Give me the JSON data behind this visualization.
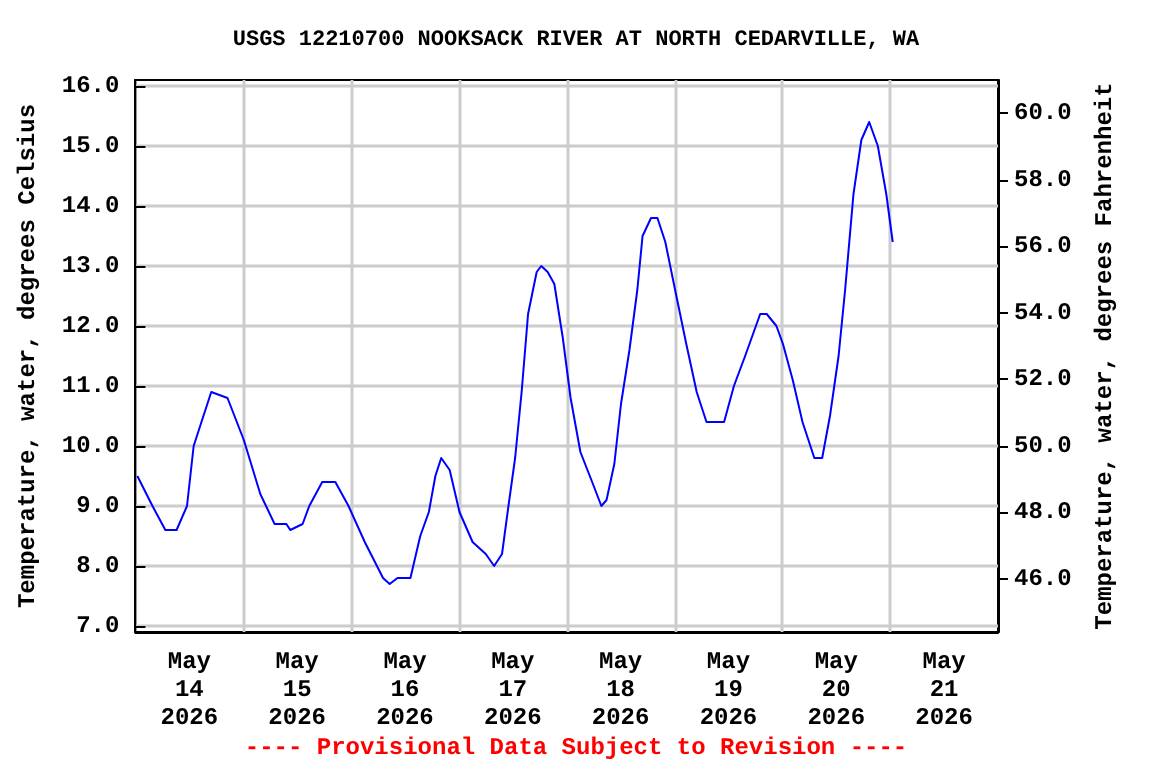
{
  "chart_data": {
    "type": "line",
    "title": "USGS 12210700 NOOKSACK RIVER AT NORTH CEDARVILLE, WA",
    "ylabel": "Temperature, water, degrees Celsius",
    "y2label": "Temperature, water, degrees Fahrenheit",
    "annotations": [
      "---- Provisional Data Subject to Revision ----"
    ],
    "x": [
      "2026-05-14T00:26",
      "2026-05-14T03:48",
      "2026-05-14T06:40",
      "2026-05-14T09:10",
      "2026-05-14T11:29",
      "2026-05-14T12:58",
      "2026-05-14T14:42",
      "2026-05-14T16:53",
      "2026-05-14T20:30",
      "2026-05-15T00:08",
      "2026-05-15T03:48",
      "2026-05-15T06:59",
      "2026-05-15T09:36",
      "2026-05-15T10:28",
      "2026-05-15T13:13",
      "2026-05-15T14:42",
      "2026-05-15T17:35",
      "2026-05-15T20:30",
      "2026-05-15T23:26",
      "2026-05-16T03:03",
      "2026-05-16T07:07",
      "2026-05-16T08:36",
      "2026-05-16T10:20",
      "2026-05-16T13:13",
      "2026-05-16T15:24",
      "2026-05-16T17:19",
      "2026-05-16T18:46",
      "2026-05-16T20:04",
      "2026-05-16T21:57",
      "2026-05-17T00:08",
      "2026-05-17T03:03",
      "2026-05-17T05:59",
      "2026-05-17T07:51",
      "2026-05-17T09:36",
      "2026-05-17T11:02",
      "2026-05-17T12:31",
      "2026-05-17T13:58",
      "2026-05-17T15:24",
      "2026-05-17T17:19",
      "2026-05-17T18:20",
      "2026-05-17T19:46",
      "2026-05-17T21:15",
      "2026-05-17T23:08",
      "2026-05-18T00:52",
      "2026-05-18T03:03",
      "2026-05-18T05:40",
      "2026-05-18T07:43",
      "2026-05-18T08:52",
      "2026-05-18T10:36",
      "2026-05-18T12:05",
      "2026-05-18T13:58",
      "2026-05-18T15:43",
      "2026-05-18T16:53",
      "2026-05-18T18:46",
      "2026-05-18T20:12",
      "2026-05-18T21:57",
      "2026-05-19T00:08",
      "2026-05-19T02:37",
      "2026-05-19T04:56",
      "2026-05-19T07:07",
      "2026-05-19T11:02",
      "2026-05-19T13:13",
      "2026-05-19T15:43",
      "2026-05-19T19:04",
      "2026-05-19T20:31",
      "2026-05-19T22:41",
      "2026-05-20T00:08",
      "2026-05-20T02:19",
      "2026-05-20T04:29",
      "2026-05-20T07:07",
      "2026-05-20T08:52",
      "2026-05-20T10:36",
      "2026-05-20T12:31",
      "2026-05-20T13:58",
      "2026-05-20T15:50",
      "2026-05-20T17:35",
      "2026-05-20T19:20",
      "2026-05-20T21:15",
      "2026-05-20T23:08",
      "2026-05-21T00:34"
    ],
    "series": [
      {
        "color": "#0000ff",
        "values": [
          9.5,
          9.0,
          8.6,
          8.6,
          9.0,
          10.0,
          10.4,
          10.9,
          10.8,
          10.1,
          9.2,
          8.7,
          8.7,
          8.6,
          8.7,
          9.0,
          9.4,
          9.4,
          9.0,
          8.4,
          7.8,
          7.7,
          7.8,
          7.8,
          8.5,
          8.9,
          9.5,
          9.8,
          9.6,
          8.9,
          8.4,
          8.2,
          8.0,
          8.2,
          9.0,
          9.8,
          10.9,
          12.2,
          12.9,
          13.0,
          12.9,
          12.7,
          11.8,
          10.8,
          9.9,
          9.4,
          9.0,
          9.1,
          9.7,
          10.7,
          11.6,
          12.6,
          13.5,
          13.8,
          13.8,
          13.4,
          12.6,
          11.7,
          10.9,
          10.4,
          10.4,
          11.0,
          11.5,
          12.2,
          12.2,
          12.0,
          11.7,
          11.1,
          10.4,
          9.8,
          9.8,
          10.5,
          11.5,
          12.6,
          14.2,
          15.1,
          15.4,
          15.0,
          14.2,
          13.4
        ]
      }
    ],
    "xlim": [
      "2026-05-14",
      "2026-05-22"
    ],
    "xticks": [
      {
        "value": "2026-05-15",
        "label": null
      },
      {
        "value": "2026-05-16",
        "label": null
      },
      {
        "value": "2026-05-17",
        "label": null
      },
      {
        "value": "2026-05-18",
        "label": null
      },
      {
        "value": "2026-05-19",
        "label": null
      },
      {
        "value": "2026-05-20",
        "label": null
      },
      {
        "value": "2026-05-21",
        "label": null
      },
      {
        "value": "2026-05-14T12:00",
        "label": "May\n14\n2026"
      },
      {
        "value": "2026-05-15T12:00",
        "label": "May\n15\n2026"
      },
      {
        "value": "2026-05-16T12:00",
        "label": "May\n16\n2026"
      },
      {
        "value": "2026-05-17T12:00",
        "label": "May\n17\n2026"
      },
      {
        "value": "2026-05-18T12:00",
        "label": "May\n18\n2026"
      },
      {
        "value": "2026-05-19T12:00",
        "label": "May\n19\n2026"
      },
      {
        "value": "2026-05-20T12:00",
        "label": "May\n20\n2026"
      },
      {
        "value": "2026-05-21T12:00",
        "label": "May\n21\n2026"
      }
    ],
    "ylim": [
      6.9,
      16.1
    ],
    "yticks": [
      {
        "value": 7,
        "label": "7.0"
      },
      {
        "value": 8,
        "label": "8.0"
      },
      {
        "value": 9,
        "label": "9.0"
      },
      {
        "value": 10,
        "label": "10.0"
      },
      {
        "value": 11,
        "label": "11.0"
      },
      {
        "value": 12,
        "label": "12.0"
      },
      {
        "value": 13,
        "label": "13.0"
      },
      {
        "value": 14,
        "label": "14.0"
      },
      {
        "value": 15,
        "label": "15.0"
      },
      {
        "value": 16,
        "label": "16.0"
      }
    ],
    "y2lim": [
      44.4,
      61.0
    ],
    "y2ticks": [
      {
        "value": 46,
        "label": "46.0"
      },
      {
        "value": 48,
        "label": "48.0"
      },
      {
        "value": 50,
        "label": "50.0"
      },
      {
        "value": 52,
        "label": "52.0"
      },
      {
        "value": 54,
        "label": "54.0"
      },
      {
        "value": 56,
        "label": "56.0"
      },
      {
        "value": 58,
        "label": "58.0"
      },
      {
        "value": 60,
        "label": "60.0"
      }
    ],
    "grid": true,
    "marker": "none",
    "line_style": "solid"
  }
}
